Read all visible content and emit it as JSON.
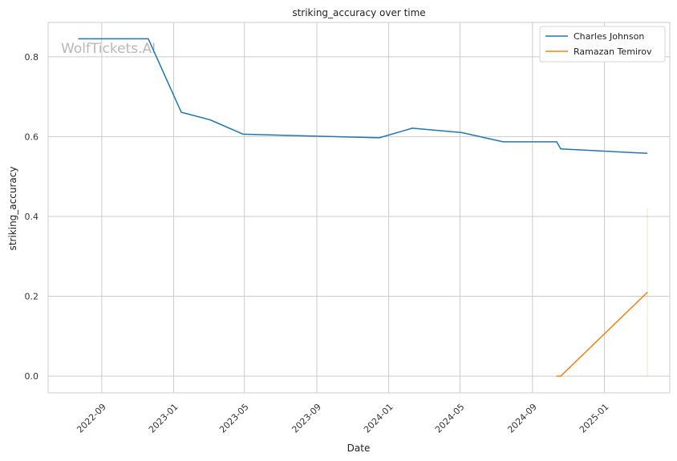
{
  "watermark": "WolfTickets.AI",
  "chart_data": {
    "type": "line",
    "title": "striking_accuracy over time",
    "xlabel": "Date",
    "ylabel": "striking_accuracy",
    "xlim": [
      "2022-06-02",
      "2025-04-22"
    ],
    "ylim": [
      -0.042,
      0.886
    ],
    "x_ticks": [
      "2022-09-01",
      "2023-01-01",
      "2023-05-01",
      "2023-09-01",
      "2024-01-01",
      "2024-05-01",
      "2024-09-01",
      "2025-01-01"
    ],
    "x_tick_labels": [
      "2022-09",
      "2023-01",
      "2023-05",
      "2023-09",
      "2024-01",
      "2024-05",
      "2024-09",
      "2025-01"
    ],
    "y_ticks": [
      0.0,
      0.2,
      0.4,
      0.6,
      0.8
    ],
    "y_tick_labels": [
      "0.0",
      "0.2",
      "0.4",
      "0.6",
      "0.8"
    ],
    "grid": true,
    "legend_position": "top-right",
    "series": [
      {
        "name": "Charles Johnson",
        "color": "#1f77b4",
        "x": [
          "2022-07-23",
          "2022-11-19",
          "2023-01-14",
          "2023-03-04",
          "2023-04-29",
          "2023-12-16",
          "2024-02-10",
          "2024-05-04",
          "2024-07-13",
          "2024-10-12",
          "2024-10-19",
          "2025-03-15"
        ],
        "y": [
          0.845,
          0.845,
          0.661,
          0.642,
          0.606,
          0.597,
          0.621,
          0.61,
          0.587,
          0.587,
          0.569,
          0.558
        ]
      },
      {
        "name": "Ramazan Temirov",
        "color": "#ff7f0e",
        "x": [
          "2024-10-12",
          "2024-10-19",
          "2025-03-15"
        ],
        "y": [
          0.0,
          0.0,
          0.21
        ]
      }
    ],
    "band": {
      "color": "#ff7f0e",
      "x": "2025-03-15",
      "y_low": 0.0,
      "y_high": 0.42
    }
  }
}
